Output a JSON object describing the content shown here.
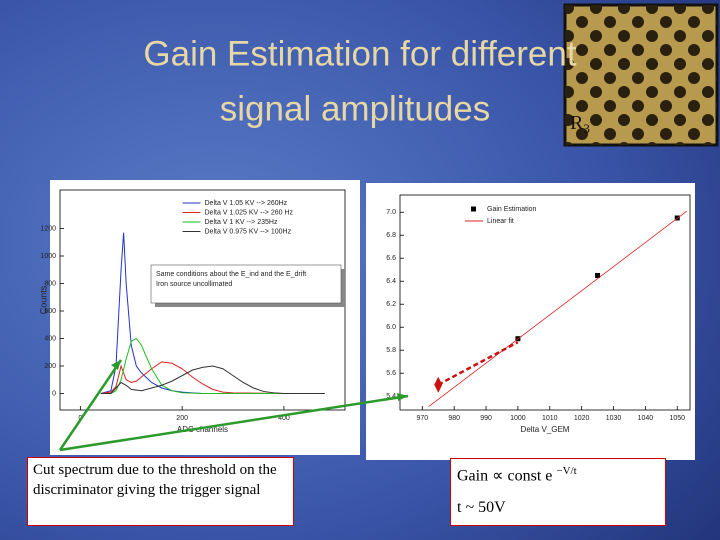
{
  "title": [
    "Gain Estimation for different",
    "signal amplitudes"
  ],
  "photo_label": {
    "main": "R",
    "sub": "3"
  },
  "left_note": "Cut spectrum due to the threshold on the discriminator giving the trigger signal",
  "right_note": {
    "formula": "Gain ∝ const e",
    "exponent": "−V/t",
    "second_line": "t ~ 50V"
  },
  "chart_data": [
    {
      "type": "line",
      "x_label": "ADC channels",
      "y_label": "Counts",
      "annotation": [
        "Same conditions about the E_ind and the E_drift",
        "Iron source uncollimated"
      ],
      "xlim": [
        -40,
        520
      ],
      "ylim": [
        -120,
        1480
      ],
      "xticks": [
        0,
        200,
        400
      ],
      "yticks": [
        0,
        200,
        400,
        600,
        800,
        1000,
        1200
      ],
      "legend": "top",
      "series": [
        {
          "name": "Delta V 1.05 KV --> 260Hz",
          "color": "#2233cc",
          "x": [
            40,
            60,
            70,
            80,
            85,
            90,
            100,
            110,
            120,
            140,
            160,
            180,
            200,
            220,
            240,
            300,
            400,
            480
          ],
          "values": [
            0,
            20,
            200,
            900,
            1170,
            800,
            350,
            200,
            150,
            80,
            40,
            20,
            10,
            5,
            0,
            0,
            0,
            0
          ]
        },
        {
          "name": "Delta V 1.025 KV --> 260 Hz",
          "color": "#dd2222",
          "x": [
            40,
            60,
            70,
            80,
            85,
            90,
            100,
            110,
            120,
            140,
            160,
            180,
            200,
            220,
            240,
            260,
            280,
            300,
            400,
            480
          ],
          "values": [
            0,
            10,
            50,
            200,
            150,
            100,
            80,
            90,
            120,
            180,
            230,
            220,
            180,
            120,
            70,
            30,
            10,
            5,
            0,
            0
          ]
        },
        {
          "name": "Delta V 1 KV --> 235Hz",
          "color": "#22bb22",
          "x": [
            40,
            60,
            70,
            80,
            90,
            100,
            110,
            120,
            140,
            160,
            180,
            200,
            240,
            400,
            480
          ],
          "values": [
            0,
            0,
            20,
            100,
            250,
            380,
            400,
            350,
            180,
            60,
            20,
            5,
            0,
            0,
            0
          ]
        },
        {
          "name": "Delta V 0.975 KV --> 100Hz",
          "color": "#333333",
          "x": [
            40,
            60,
            80,
            90,
            100,
            120,
            140,
            160,
            180,
            200,
            220,
            240,
            260,
            280,
            300,
            320,
            340,
            360,
            380,
            400,
            480
          ],
          "values": [
            0,
            0,
            80,
            60,
            30,
            20,
            40,
            60,
            90,
            130,
            170,
            190,
            200,
            180,
            130,
            80,
            40,
            15,
            5,
            0,
            0
          ]
        }
      ]
    },
    {
      "type": "scatter",
      "x_label": "Delta V_GEM",
      "xlim": [
        963,
        1054
      ],
      "ylim": [
        5.28,
        7.15
      ],
      "xticks": [
        970,
        980,
        990,
        1000,
        1010,
        1020,
        1030,
        1040,
        1050
      ],
      "yticks": [
        5.4,
        5.6,
        5.8,
        {
          "value": 6,
          "label": "6.0"
        },
        6.2,
        6.4,
        6.6,
        6.8,
        {
          "value": 7,
          "label": "7.0"
        }
      ],
      "legend": "upper right",
      "series": [
        {
          "name": "Gain Estimation",
          "color": "#000000",
          "mode": "markers",
          "x": [
            1000,
            1025,
            1050
          ],
          "values": [
            5.9,
            6.45,
            6.95
          ]
        },
        {
          "name": "Linear fit",
          "color": "#dd2222",
          "mode": "line",
          "x": [
            972,
            1053
          ],
          "values": [
            5.31,
            7.01
          ]
        },
        {
          "color": "#cc1111",
          "mode": "dashed",
          "x": [
            975,
            1000
          ],
          "values": [
            5.5,
            5.87
          ]
        }
      ]
    }
  ]
}
